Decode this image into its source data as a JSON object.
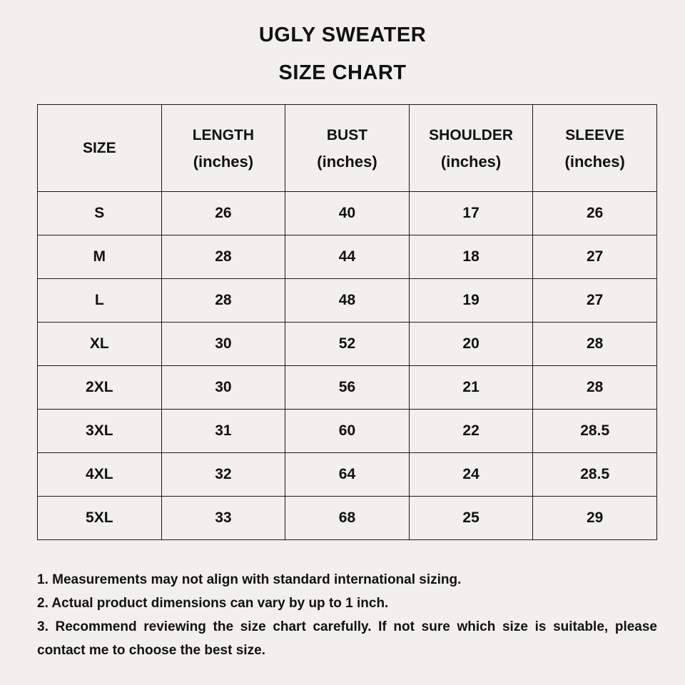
{
  "title_line1": "UGLY SWEATER",
  "title_line2": "SIZE CHART",
  "table": {
    "headers": [
      {
        "name": "SIZE",
        "unit": ""
      },
      {
        "name": "LENGTH",
        "unit": "(inches)"
      },
      {
        "name": "BUST",
        "unit": "(inches)"
      },
      {
        "name": "SHOULDER",
        "unit": "(inches)"
      },
      {
        "name": "SLEEVE",
        "unit": "(inches)"
      }
    ],
    "rows": [
      [
        "S",
        "26",
        "40",
        "17",
        "26"
      ],
      [
        "M",
        "28",
        "44",
        "18",
        "27"
      ],
      [
        "L",
        "28",
        "48",
        "19",
        "27"
      ],
      [
        "XL",
        "30",
        "52",
        "20",
        "28"
      ],
      [
        "2XL",
        "30",
        "56",
        "21",
        "28"
      ],
      [
        "3XL",
        "31",
        "60",
        "22",
        "28.5"
      ],
      [
        "4XL",
        "32",
        "64",
        "24",
        "28.5"
      ],
      [
        "5XL",
        "33",
        "68",
        "25",
        "29"
      ]
    ]
  },
  "notes": [
    "1. Measurements may not align with standard international sizing.",
    "2. Actual product dimensions can vary by up to 1 inch.",
    "3. Recommend reviewing the size chart carefully. If not sure which size is suitable, please contact me to choose the best size."
  ]
}
